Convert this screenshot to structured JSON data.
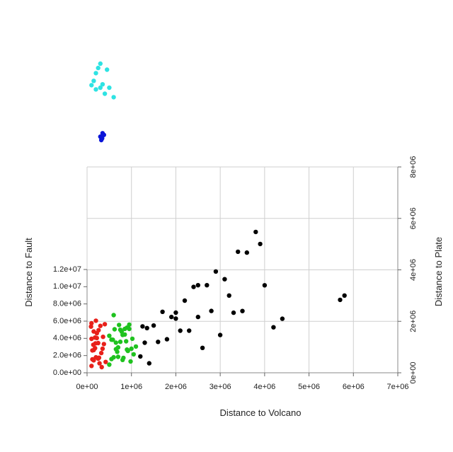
{
  "chart_data": {
    "type": "scatter",
    "projection": "3d",
    "title": "",
    "xlabel": "Distance to Volcano",
    "ylabel": "Distance to Plate",
    "zlabel": "Distance to Fault",
    "xlim": [
      0,
      7000000
    ],
    "ylim": [
      0,
      8000000
    ],
    "zlim": [
      0,
      12000000
    ],
    "x_ticks": [
      "0e+00",
      "1e+06",
      "2e+06",
      "3e+06",
      "4e+06",
      "5e+06",
      "6e+06",
      "7e+06"
    ],
    "y_ticks": [
      "0e+00",
      "2e+06",
      "4e+06",
      "6e+06",
      "8e+06"
    ],
    "z_ticks": [
      "0.0e+00",
      "2.0e+06",
      "4.0e+06",
      "6.0e+06",
      "8.0e+06",
      "1.0e+07",
      "1.2e+07"
    ],
    "grid": true,
    "legend": "none",
    "series": [
      {
        "color": "#e8201a",
        "points": [
          [
            100000,
            100000,
            500000
          ],
          [
            150000,
            150000,
            1000000
          ],
          [
            200000,
            100000,
            1500000
          ],
          [
            120000,
            200000,
            2000000
          ],
          [
            180000,
            120000,
            2500000
          ],
          [
            250000,
            150000,
            3000000
          ],
          [
            100000,
            150000,
            3500000
          ],
          [
            220000,
            200000,
            4000000
          ],
          [
            150000,
            100000,
            4500000
          ],
          [
            300000,
            150000,
            5000000
          ],
          [
            200000,
            250000,
            5300000
          ],
          [
            120000,
            120000,
            1200000
          ],
          [
            280000,
            100000,
            800000
          ],
          [
            350000,
            200000,
            2200000
          ],
          [
            180000,
            300000,
            3200000
          ],
          [
            260000,
            250000,
            4200000
          ],
          [
            330000,
            120000,
            300000
          ],
          [
            150000,
            280000,
            1800000
          ],
          [
            380000,
            180000,
            2800000
          ],
          [
            100000,
            320000,
            4800000
          ],
          [
            400000,
            150000,
            5200000
          ],
          [
            250000,
            350000,
            600000
          ],
          [
            220000,
            80000,
            3800000
          ],
          [
            320000,
            300000,
            1400000
          ],
          [
            140000,
            220000,
            2600000
          ],
          [
            420000,
            120000,
            900000
          ],
          [
            90000,
            90000,
            5100000
          ],
          [
            360000,
            260000,
            3400000
          ],
          [
            270000,
            50000,
            1600000
          ],
          [
            190000,
            340000,
            2400000
          ]
        ]
      },
      {
        "color": "#1fc21f",
        "points": [
          [
            500000,
            150000,
            500000
          ],
          [
            550000,
            200000,
            1000000
          ],
          [
            600000,
            100000,
            1500000
          ],
          [
            650000,
            250000,
            2000000
          ],
          [
            700000,
            150000,
            2500000
          ],
          [
            750000,
            200000,
            3000000
          ],
          [
            800000,
            300000,
            3500000
          ],
          [
            850000,
            150000,
            4000000
          ],
          [
            900000,
            250000,
            4500000
          ],
          [
            950000,
            200000,
            5000000
          ],
          [
            600000,
            400000,
            5500000
          ],
          [
            700000,
            350000,
            800000
          ],
          [
            800000,
            100000,
            1200000
          ],
          [
            900000,
            300000,
            1800000
          ],
          [
            1000000,
            200000,
            2200000
          ],
          [
            550000,
            350000,
            2800000
          ],
          [
            650000,
            100000,
            3200000
          ],
          [
            750000,
            400000,
            3800000
          ],
          [
            850000,
            300000,
            4200000
          ],
          [
            950000,
            100000,
            4800000
          ],
          [
            1050000,
            250000,
            1400000
          ],
          [
            1100000,
            150000,
            2600000
          ],
          [
            500000,
            300000,
            3400000
          ],
          [
            620000,
            220000,
            4400000
          ],
          [
            720000,
            120000,
            5200000
          ],
          [
            820000,
            380000,
            600000
          ],
          [
            920000,
            180000,
            2000000
          ],
          [
            1020000,
            320000,
            3000000
          ],
          [
            580000,
            80000,
            3600000
          ],
          [
            680000,
            280000,
            1600000
          ],
          [
            780000,
            60000,
            4600000
          ],
          [
            880000,
            420000,
            2400000
          ],
          [
            980000,
            140000,
            900000
          ]
        ]
      },
      {
        "color": "#000000",
        "points": [
          [
            1200000,
            300000,
            1000000
          ],
          [
            1300000,
            500000,
            2000000
          ],
          [
            1250000,
            800000,
            3000000
          ],
          [
            1350000,
            400000,
            4000000
          ],
          [
            1500000,
            1000000,
            2500000
          ],
          [
            1700000,
            1200000,
            3500000
          ],
          [
            1800000,
            800000,
            1500000
          ],
          [
            2000000,
            1500000,
            2500000
          ],
          [
            2200000,
            1800000,
            3000000
          ],
          [
            2100000,
            1300000,
            1000000
          ],
          [
            2400000,
            2000000,
            4000000
          ],
          [
            2500000,
            1500000,
            2000000
          ],
          [
            2700000,
            2400000,
            3000000
          ],
          [
            2900000,
            2600000,
            4000000
          ],
          [
            3100000,
            2800000,
            2500000
          ],
          [
            3200000,
            2500000,
            1500000
          ],
          [
            3400000,
            3200000,
            4500000
          ],
          [
            3600000,
            3500000,
            3500000
          ],
          [
            3800000,
            3800000,
            5000000
          ],
          [
            3900000,
            3600000,
            4200000
          ],
          [
            4000000,
            3000000,
            1200000
          ],
          [
            4200000,
            1600000,
            500000
          ],
          [
            4400000,
            1800000,
            900000
          ],
          [
            3000000,
            1200000,
            800000
          ],
          [
            2800000,
            1800000,
            1800000
          ],
          [
            2600000,
            800000,
            500000
          ],
          [
            2300000,
            900000,
            2200000
          ],
          [
            1900000,
            1100000,
            3200000
          ],
          [
            1600000,
            600000,
            1800000
          ],
          [
            1400000,
            200000,
            500000
          ],
          [
            3300000,
            2000000,
            1000000
          ],
          [
            2000000,
            700000,
            4200000
          ],
          [
            5700000,
            2500000,
            1000000
          ],
          [
            5800000,
            2600000,
            1200000
          ],
          [
            3500000,
            2200000,
            600000
          ],
          [
            2500000,
            2200000,
            3600000
          ]
        ]
      },
      {
        "color": "#2ee3e3",
        "points": [
          [
            100000,
            7500000,
            11000000
          ],
          [
            200000,
            7800000,
            11500000
          ],
          [
            300000,
            8000000,
            12000000
          ],
          [
            150000,
            7600000,
            11200000
          ],
          [
            250000,
            7900000,
            11800000
          ],
          [
            350000,
            7700000,
            10500000
          ],
          [
            400000,
            7500000,
            10000000
          ],
          [
            500000,
            7800000,
            9800000
          ],
          [
            600000,
            7300000,
            10200000
          ],
          [
            200000,
            7400000,
            10800000
          ],
          [
            300000,
            7600000,
            10400000
          ],
          [
            450000,
            7900000,
            11600000
          ]
        ]
      },
      {
        "color": "#0a15d8",
        "points": [
          [
            300000,
            6000000,
            9500000
          ],
          [
            350000,
            6100000,
            9600000
          ],
          [
            320000,
            5900000,
            9400000
          ],
          [
            380000,
            6050000,
            9550000
          ],
          [
            340000,
            5950000,
            9450000
          ]
        ]
      }
    ]
  }
}
